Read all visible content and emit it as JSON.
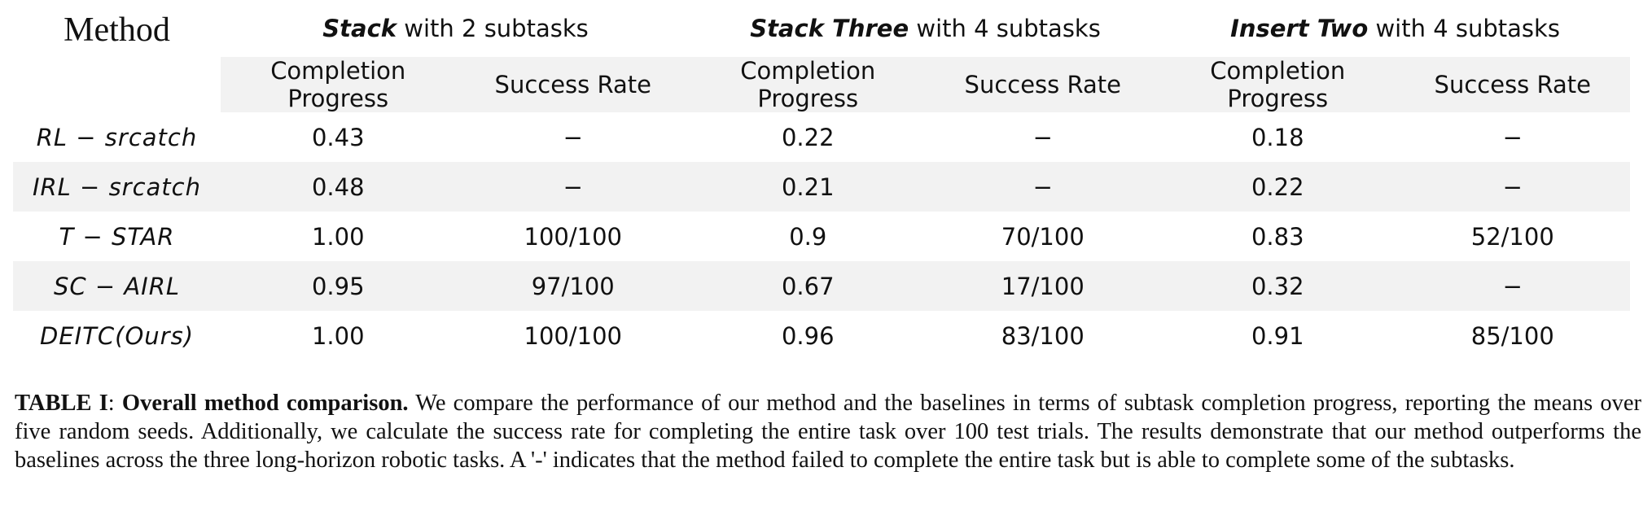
{
  "table": {
    "method_header": "Method",
    "groups": [
      {
        "name": "Stack",
        "suffix": " with 2 subtasks"
      },
      {
        "name": "Stack Three",
        "suffix": " with 4 subtasks"
      },
      {
        "name": "Insert Two",
        "suffix": " with 4 subtasks"
      }
    ],
    "subheaders": [
      "Completion Progress",
      "Success Rate",
      "Completion Progress",
      "Success Rate",
      "Completion Progress",
      "Success Rate"
    ],
    "rows": [
      {
        "method": "RL − srcatch",
        "cells": [
          "0.43",
          "−",
          "0.22",
          "−",
          "0.18",
          "−"
        ]
      },
      {
        "method": "IRL − srcatch",
        "cells": [
          "0.48",
          "−",
          "0.21",
          "−",
          "0.22",
          "−"
        ]
      },
      {
        "method": "T − STAR",
        "cells": [
          "1.00",
          "100/100",
          "0.9",
          "70/100",
          "0.83",
          "52/100"
        ]
      },
      {
        "method": "SC − AIRL",
        "cells": [
          "0.95",
          "97/100",
          "0.67",
          "17/100",
          "0.32",
          "−"
        ]
      },
      {
        "method": "DEITC(Ours)",
        "cells": [
          "1.00",
          "100/100",
          "0.96",
          "83/100",
          "0.91",
          "85/100"
        ]
      }
    ]
  },
  "caption": {
    "label": "TABLE I",
    "separator": ": ",
    "title": "Overall method comparison.",
    "body": " We compare the performance of our method and the baselines in terms of subtask completion progress, reporting the means over five random seeds. Additionally, we calculate the success rate for completing the entire task over 100 test trials. The results demonstrate that our method outperforms the baselines across the three long-horizon robotic tasks. A '-' indicates that the method failed to complete the entire task but is able to complete some of the subtasks."
  }
}
